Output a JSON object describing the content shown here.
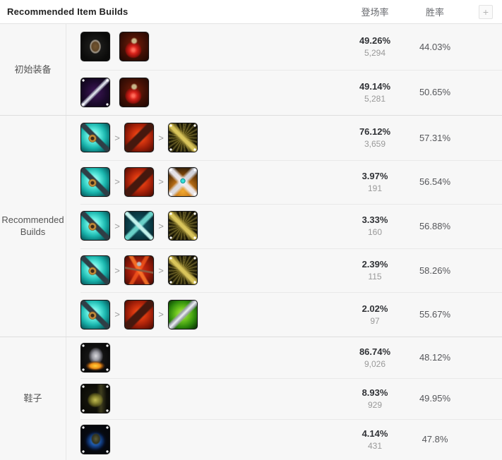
{
  "header": {
    "title": "Recommended Item Builds",
    "col_pick": "登场率",
    "col_win": "胜率",
    "add_button": "+"
  },
  "chevron": ">",
  "tick_icons": [
    "long-sword",
    "golden-serrated-sword",
    "guardian-wings",
    "berserkers-greaves",
    "swiftness-boots",
    "mercury-treads"
  ],
  "sections": [
    {
      "id": "starting-items",
      "label": "初始装备",
      "arrows": false,
      "rows": [
        {
          "items": [
            "dorans-shield",
            "health-potion"
          ],
          "pick": "49.26%",
          "count": "5,294",
          "win": "44.03%"
        },
        {
          "items": [
            "long-sword",
            "health-potion"
          ],
          "pick": "49.14%",
          "count": "5,281",
          "win": "50.65%"
        }
      ]
    },
    {
      "id": "recommended-builds",
      "label": "Recommended Builds",
      "arrows": true,
      "rows": [
        {
          "items": [
            "kraken-slayer",
            "collector-gun",
            "golden-serrated-sword"
          ],
          "pick": "76.12%",
          "count": "3,659",
          "win": "57.31%"
        },
        {
          "items": [
            "kraken-slayer",
            "collector-gun",
            "guardian-wings"
          ],
          "pick": "3.97%",
          "count": "191",
          "win": "56.54%"
        },
        {
          "items": [
            "kraken-slayer",
            "runaans-hurricane",
            "golden-serrated-sword"
          ],
          "pick": "3.33%",
          "count": "160",
          "win": "56.88%"
        },
        {
          "items": [
            "kraken-slayer",
            "red-lightning-trident",
            "golden-serrated-sword"
          ],
          "pick": "2.39%",
          "count": "115",
          "win": "58.26%"
        },
        {
          "items": [
            "kraken-slayer",
            "collector-gun",
            "serrated-dirk"
          ],
          "pick": "2.02%",
          "count": "97",
          "win": "55.67%"
        }
      ]
    },
    {
      "id": "boots",
      "label": "鞋子",
      "arrows": false,
      "rows": [
        {
          "items": [
            "berserkers-greaves"
          ],
          "pick": "86.74%",
          "count": "9,026",
          "win": "48.12%"
        },
        {
          "items": [
            "swiftness-boots"
          ],
          "pick": "8.93%",
          "count": "929",
          "win": "49.95%"
        },
        {
          "items": [
            "mercury-treads"
          ],
          "pick": "4.14%",
          "count": "431",
          "win": "47.8%"
        }
      ]
    }
  ],
  "colors": {
    "panel_bg": "#f7f7f7",
    "header_bg": "#ffffff",
    "divider": "#e9e9e9",
    "section_divider": "#dedede",
    "title_text": "#222222",
    "column_header_text": "#67696e",
    "section_label_text": "#555555",
    "pick_rate_text": "#303236",
    "count_text": "#999999",
    "win_rate_text": "#55565a"
  }
}
